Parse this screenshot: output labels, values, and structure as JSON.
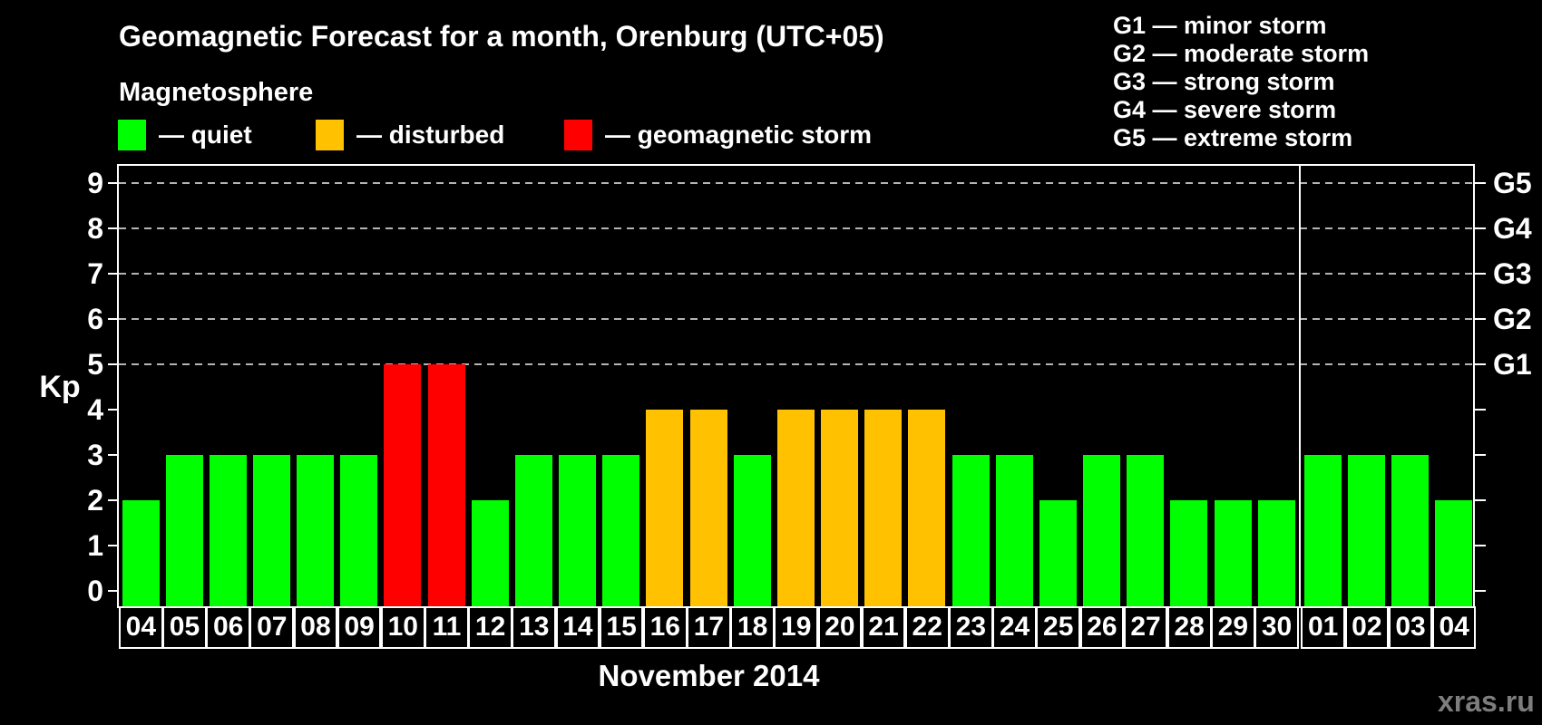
{
  "page": {
    "subtitle": "Magnetosphere",
    "watermark": "xras.ru"
  },
  "legend": {
    "items": [
      {
        "label": "— quiet",
        "color": "#00ff00"
      },
      {
        "label": "— disturbed",
        "color": "#ffc100"
      },
      {
        "label": "— geomagnetic storm",
        "color": "#ff0000"
      }
    ]
  },
  "storm_scale_legend": [
    "G1 — minor storm",
    "G2 — moderate storm",
    "G3 — strong storm",
    "G4 — severe storm",
    "G5 — extreme storm"
  ],
  "chart_data": {
    "type": "bar",
    "title": "Geomagnetic Forecast for a month, Orenburg (UTC+05)",
    "xlabel": "November 2014",
    "ylabel": "Kp",
    "ylim": [
      0,
      9
    ],
    "yticks": [
      0,
      1,
      2,
      3,
      4,
      5,
      6,
      7,
      8,
      9
    ],
    "gridlines_at": [
      5,
      6,
      7,
      8,
      9
    ],
    "right_axis": [
      {
        "kp": 5,
        "label": "G1"
      },
      {
        "kp": 6,
        "label": "G2"
      },
      {
        "kp": 7,
        "label": "G3"
      },
      {
        "kp": 8,
        "label": "G4"
      },
      {
        "kp": 9,
        "label": "G5"
      }
    ],
    "categories": [
      "04",
      "05",
      "06",
      "07",
      "08",
      "09",
      "10",
      "11",
      "12",
      "13",
      "14",
      "15",
      "16",
      "17",
      "18",
      "19",
      "20",
      "21",
      "22",
      "23",
      "24",
      "25",
      "26",
      "27",
      "28",
      "29",
      "30",
      "01",
      "02",
      "03",
      "04"
    ],
    "values": [
      2,
      3,
      3,
      3,
      3,
      3,
      5,
      5,
      2,
      3,
      3,
      3,
      4,
      4,
      3,
      4,
      4,
      4,
      4,
      3,
      3,
      2,
      3,
      3,
      2,
      2,
      2,
      3,
      3,
      3,
      2
    ],
    "statuses": [
      "quiet",
      "quiet",
      "quiet",
      "quiet",
      "quiet",
      "quiet",
      "storm",
      "storm",
      "quiet",
      "quiet",
      "quiet",
      "quiet",
      "disturbed",
      "disturbed",
      "quiet",
      "disturbed",
      "disturbed",
      "disturbed",
      "disturbed",
      "quiet",
      "quiet",
      "quiet",
      "quiet",
      "quiet",
      "quiet",
      "quiet",
      "quiet",
      "quiet",
      "quiet",
      "quiet",
      "quiet"
    ],
    "status_colors": {
      "quiet": "#00ff00",
      "disturbed": "#ffc100",
      "storm": "#ff0000"
    },
    "month_separator_after_index": 26
  }
}
